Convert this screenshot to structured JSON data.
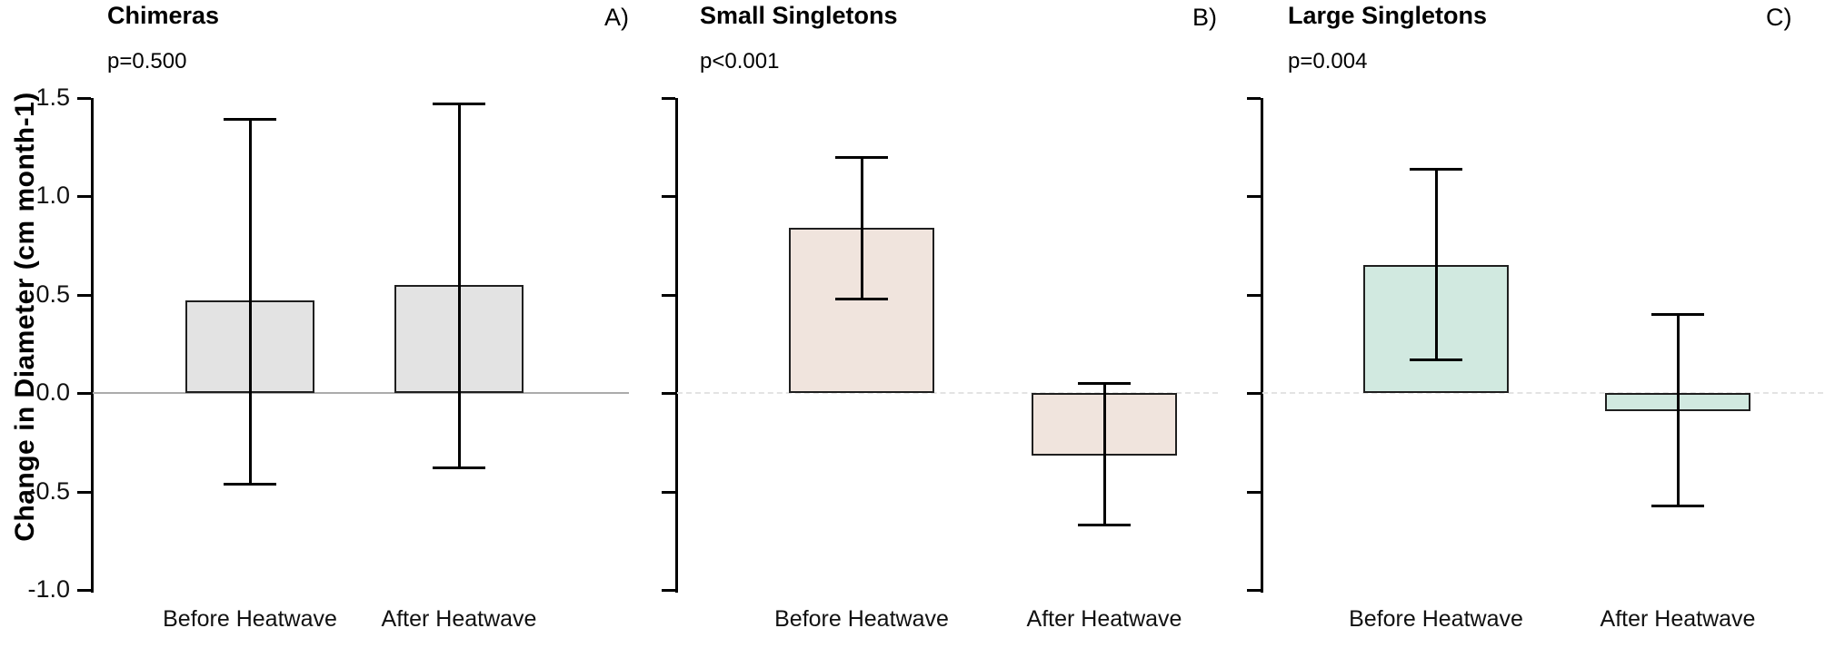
{
  "y_axis": {
    "label": "Change in Diameter (cm month-1)",
    "tick_labels": [
      "1.5",
      "1.0",
      "0.5",
      "0.0",
      "-0.5",
      "-1.0"
    ]
  },
  "categories": [
    "Before Heatwave",
    "After Heatwave"
  ],
  "chart_data": [
    {
      "type": "bar",
      "title": "Chimeras",
      "panel_letter": "A)",
      "p_label": "p=0.500",
      "categories": [
        "Before Heatwave",
        "After Heatwave"
      ],
      "values": [
        0.47,
        0.55
      ],
      "error_low": [
        -0.46,
        -0.38
      ],
      "error_high": [
        1.39,
        1.47
      ],
      "bar_color": "#e3e3e3",
      "ylabel": "Change in Diameter (cm month-1)",
      "ylim": [
        -1.0,
        1.5
      ],
      "yticks": [
        1.5,
        1.0,
        0.5,
        0.0,
        -0.5,
        -1.0
      ],
      "ytick_labels_visible": true,
      "zero_line_style": "solid",
      "legend": "none",
      "grid": "off"
    },
    {
      "type": "bar",
      "title": "Small Singletons",
      "panel_letter": "B)",
      "p_label": "p<0.001",
      "categories": [
        "Before Heatwave",
        "After Heatwave"
      ],
      "values": [
        0.84,
        -0.32
      ],
      "error_low": [
        0.48,
        -0.67
      ],
      "error_high": [
        1.2,
        0.05
      ],
      "bar_color": "#f0e4dd",
      "ylabel": "",
      "ylim": [
        -1.0,
        1.5
      ],
      "yticks": [
        1.5,
        1.0,
        0.5,
        0.0,
        -0.5,
        -1.0
      ],
      "ytick_labels_visible": false,
      "zero_line_style": "dashed",
      "legend": "none",
      "grid": "off"
    },
    {
      "type": "bar",
      "title": "Large Singletons",
      "panel_letter": "C)",
      "p_label": "p=0.004",
      "categories": [
        "Before Heatwave",
        "After Heatwave"
      ],
      "values": [
        0.65,
        -0.09
      ],
      "error_low": [
        0.17,
        -0.57
      ],
      "error_high": [
        1.14,
        0.4
      ],
      "bar_color": "#d1e9e0",
      "ylabel": "",
      "ylim": [
        -1.0,
        1.5
      ],
      "yticks": [
        1.5,
        1.0,
        0.5,
        0.0,
        -0.5,
        -1.0
      ],
      "ytick_labels_visible": false,
      "zero_line_style": "dashed",
      "legend": "none",
      "grid": "off"
    }
  ]
}
